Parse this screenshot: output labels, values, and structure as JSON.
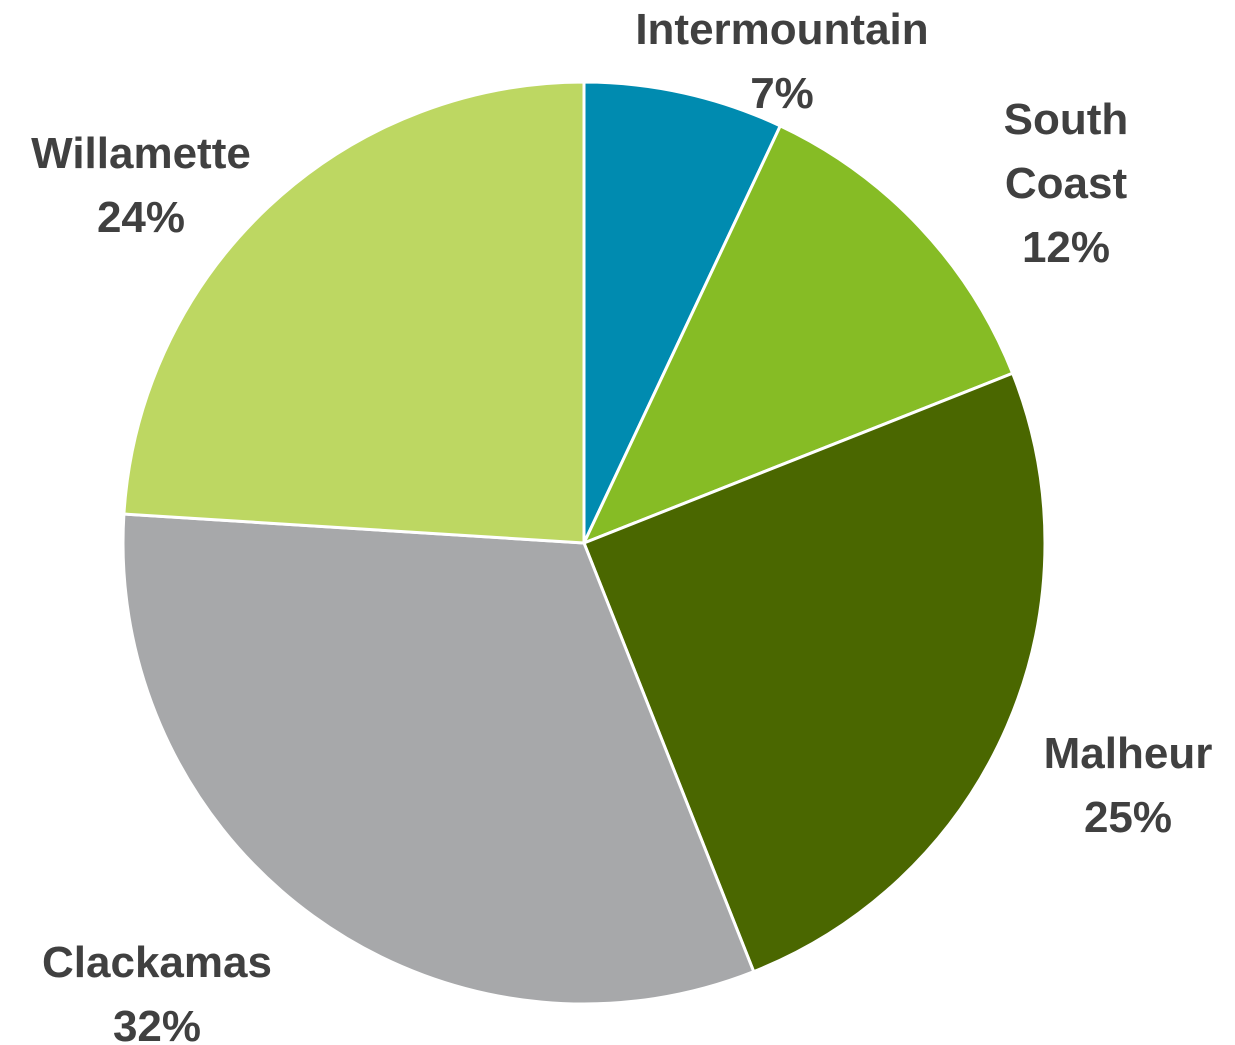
{
  "chart_data": {
    "type": "pie",
    "title": "",
    "start_angle_deg": 0,
    "direction": "clockwise",
    "unit": "%",
    "slices": [
      {
        "name": "Intermountain",
        "label_lines": [
          "Intermountain"
        ],
        "value": 7,
        "value_label": "7%",
        "color": "#008BB0"
      },
      {
        "name": "South Coast",
        "label_lines": [
          "South",
          "Coast"
        ],
        "value": 12,
        "value_label": "12%",
        "color": "#86BC25"
      },
      {
        "name": "Malheur",
        "label_lines": [
          "Malheur"
        ],
        "value": 25,
        "value_label": "25%",
        "color": "#4A6700"
      },
      {
        "name": "Clackamas",
        "label_lines": [
          "Clackamas"
        ],
        "value": 32,
        "value_label": "32%",
        "color": "#A7A8AA"
      },
      {
        "name": "Willamette",
        "label_lines": [
          "Willamette"
        ],
        "value": 24,
        "value_label": "24%",
        "color": "#BDD762"
      }
    ]
  }
}
